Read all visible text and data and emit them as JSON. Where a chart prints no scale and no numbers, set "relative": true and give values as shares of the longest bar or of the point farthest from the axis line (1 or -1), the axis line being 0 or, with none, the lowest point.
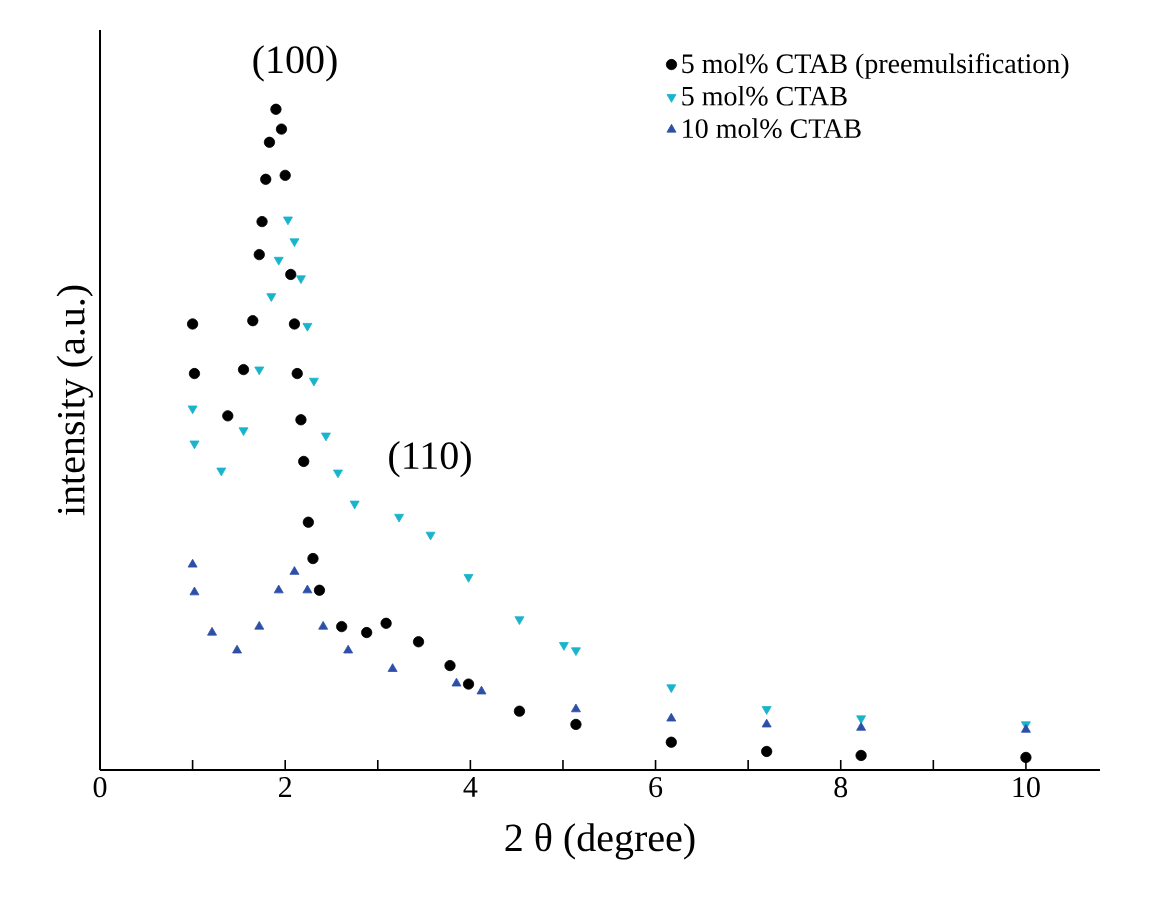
{
  "chart_data": {
    "type": "scatter",
    "relative": true,
    "xlabel": "2 θ (degree)",
    "ylabel": "intensity (a.u.)",
    "xlim": [
      0,
      10.8
    ],
    "xticks": [
      0,
      {
        "value": 1,
        "label": null
      },
      2,
      {
        "value": 3,
        "label": null
      },
      4,
      {
        "value": 5,
        "label": null
      },
      6,
      {
        "value": 7,
        "label": null
      },
      8,
      {
        "value": 9,
        "label": null
      },
      10
    ],
    "legend": "top right",
    "grid": false,
    "annotations": [
      "(100)",
      "(110)"
    ],
    "series": [
      {
        "name": "5 mol% CTAB (preemulsification)",
        "color": "#000000",
        "marker": "circle",
        "x": [
          1.0,
          1.02,
          1.38,
          1.55,
          1.65,
          1.72,
          1.75,
          1.79,
          1.83,
          1.9,
          1.96,
          2.0,
          2.06,
          2.1,
          2.13,
          2.17,
          2.2,
          2.25,
          2.3,
          2.37,
          2.61,
          2.88,
          3.09,
          3.44,
          3.78,
          3.98,
          4.53,
          5.14,
          6.17,
          7.2,
          8.22,
          10.0
        ],
        "values": [
          0.675,
          0.6,
          0.536,
          0.606,
          0.68,
          0.78,
          0.83,
          0.894,
          0.95,
          1.0,
          0.97,
          0.9,
          0.75,
          0.675,
          0.6,
          0.53,
          0.467,
          0.375,
          0.32,
          0.272,
          0.217,
          0.208,
          0.222,
          0.194,
          0.158,
          0.13,
          0.089,
          0.069,
          0.042,
          0.028,
          0.022,
          0.019
        ]
      },
      {
        "name": "5 mol% CTAB",
        "color": "#19b4cc",
        "marker": "triangle-down",
        "x": [
          1.0,
          1.02,
          1.31,
          1.55,
          1.72,
          1.85,
          1.93,
          2.03,
          2.1,
          2.17,
          2.24,
          2.31,
          2.44,
          2.57,
          2.75,
          3.23,
          3.57,
          3.98,
          4.53,
          5.01,
          5.14,
          6.17,
          7.2,
          8.22,
          10.0
        ],
        "values": [
          0.547,
          0.494,
          0.453,
          0.514,
          0.606,
          0.717,
          0.772,
          0.833,
          0.8,
          0.744,
          0.672,
          0.589,
          0.506,
          0.45,
          0.403,
          0.383,
          0.356,
          0.292,
          0.228,
          0.189,
          0.181,
          0.125,
          0.092,
          0.078,
          0.069
        ]
      },
      {
        "name": "10 mol% CTAB",
        "color": "#2e4fa8",
        "marker": "triangle",
        "x": [
          1.0,
          1.02,
          1.21,
          1.48,
          1.72,
          1.93,
          2.1,
          2.24,
          2.41,
          2.68,
          3.16,
          3.85,
          4.12,
          5.14,
          6.17,
          7.2,
          8.22,
          10.0
        ],
        "values": [
          0.311,
          0.269,
          0.208,
          0.181,
          0.217,
          0.272,
          0.3,
          0.272,
          0.217,
          0.181,
          0.153,
          0.131,
          0.119,
          0.092,
          0.078,
          0.069,
          0.064,
          0.061
        ]
      }
    ]
  }
}
